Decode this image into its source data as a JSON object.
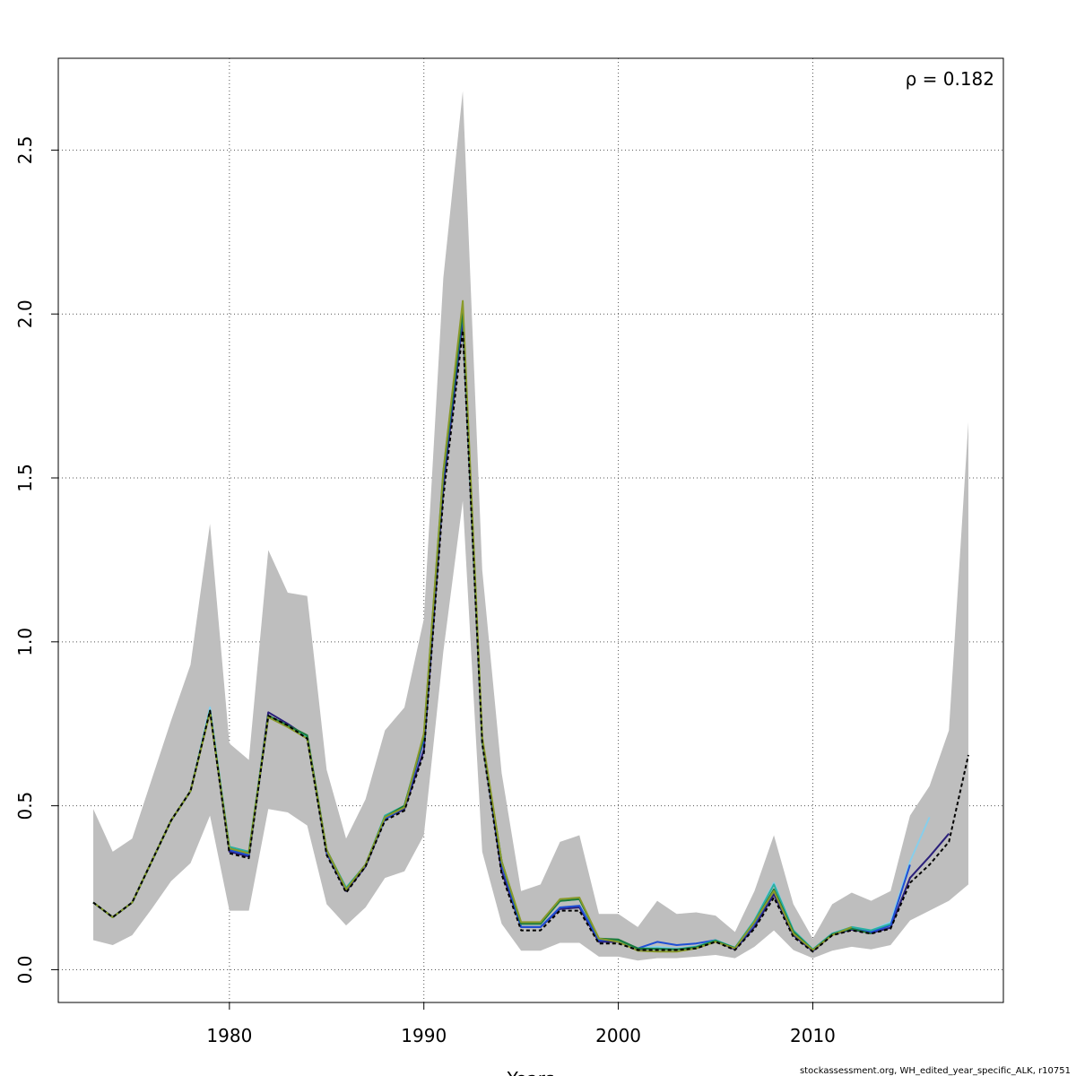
{
  "chart_data": {
    "type": "line",
    "title": "",
    "xlabel": "Years",
    "ylabel": "",
    "xlim": [
      1971.2,
      2019.8
    ],
    "ylim": [
      -0.1,
      2.78
    ],
    "x_ticks": [
      1980,
      1990,
      2000,
      2010
    ],
    "y_ticks": [
      0.0,
      0.5,
      1.0,
      1.5,
      2.0,
      2.5
    ],
    "y_tick_labels": [
      "0.0",
      "0.5",
      "1.0",
      "1.5",
      "2.0",
      "2.5"
    ],
    "grid": true,
    "annotation": "ρ = 0.182",
    "footer": "stockassessment.org, WH_edited_year_specific_ALK, r10751",
    "band_color": "#bebebe",
    "confidence_band": {
      "x": [
        1973,
        1974,
        1975,
        1976,
        1977,
        1978,
        1979,
        1980,
        1981,
        1982,
        1983,
        1984,
        1985,
        1986,
        1987,
        1988,
        1989,
        1990,
        1991,
        1992,
        1993,
        1994,
        1995,
        1996,
        1997,
        1998,
        1999,
        2000,
        2001,
        2002,
        2003,
        2004,
        2005,
        2006,
        2007,
        2008,
        2009,
        2010,
        2011,
        2012,
        2013,
        2014,
        2015,
        2016,
        2017,
        2018
      ],
      "lower": [
        0.09,
        0.075,
        0.105,
        0.185,
        0.27,
        0.325,
        0.47,
        0.18,
        0.18,
        0.49,
        0.48,
        0.44,
        0.2,
        0.135,
        0.19,
        0.28,
        0.3,
        0.41,
        0.97,
        1.43,
        0.36,
        0.14,
        0.058,
        0.058,
        0.082,
        0.082,
        0.04,
        0.04,
        0.028,
        0.035,
        0.035,
        0.04,
        0.045,
        0.035,
        0.07,
        0.12,
        0.06,
        0.035,
        0.058,
        0.07,
        0.062,
        0.075,
        0.15,
        0.18,
        0.21,
        0.26
      ],
      "upper": [
        0.49,
        0.36,
        0.4,
        0.58,
        0.76,
        0.93,
        1.36,
        0.69,
        0.64,
        1.28,
        1.15,
        1.14,
        0.61,
        0.4,
        0.52,
        0.73,
        0.8,
        1.07,
        2.11,
        2.68,
        1.22,
        0.6,
        0.24,
        0.26,
        0.39,
        0.41,
        0.17,
        0.17,
        0.13,
        0.21,
        0.17,
        0.175,
        0.165,
        0.115,
        0.24,
        0.41,
        0.2,
        0.095,
        0.2,
        0.235,
        0.21,
        0.24,
        0.47,
        0.56,
        0.73,
        1.67
      ]
    },
    "series": [
      {
        "color": "#000000",
        "dashed": true,
        "x": [
          1973,
          1974,
          1975,
          1976,
          1977,
          1978,
          1979,
          1980,
          1981,
          1982,
          1983,
          1984,
          1985,
          1986,
          1987,
          1988,
          1989,
          1990,
          1991,
          1992,
          1993,
          1994,
          1995,
          1996,
          1997,
          1998,
          1999,
          2000,
          2001,
          2002,
          2003,
          2004,
          2005,
          2006,
          2007,
          2008,
          2009,
          2010,
          2011,
          2012,
          2013,
          2014,
          2015,
          2016,
          2017,
          2018
        ],
        "values": [
          0.205,
          0.16,
          0.205,
          0.33,
          0.455,
          0.545,
          0.79,
          0.355,
          0.34,
          0.775,
          0.745,
          0.705,
          0.35,
          0.235,
          0.315,
          0.455,
          0.485,
          0.66,
          1.44,
          1.95,
          0.69,
          0.29,
          0.12,
          0.12,
          0.18,
          0.18,
          0.08,
          0.08,
          0.06,
          0.06,
          0.06,
          0.065,
          0.085,
          0.06,
          0.125,
          0.22,
          0.1,
          0.055,
          0.105,
          0.12,
          0.11,
          0.125,
          0.265,
          0.32,
          0.39,
          0.655
        ]
      },
      {
        "color": "#2a1f7a",
        "dashed": false,
        "x": [
          1973,
          1974,
          1975,
          1976,
          1977,
          1978,
          1979,
          1980,
          1981,
          1982,
          1983,
          1984,
          1985,
          1986,
          1987,
          1988,
          1989,
          1990,
          1991,
          1992,
          1993,
          1994,
          1995,
          1996,
          1997,
          1998,
          1999,
          2000,
          2001,
          2002,
          2003,
          2004,
          2005,
          2006,
          2007,
          2008,
          2009,
          2010,
          2011,
          2012,
          2013,
          2014,
          2015,
          2016,
          2017
        ],
        "values": [
          0.205,
          0.16,
          0.205,
          0.33,
          0.455,
          0.545,
          0.79,
          0.36,
          0.345,
          0.785,
          0.75,
          0.71,
          0.355,
          0.24,
          0.315,
          0.46,
          0.49,
          0.67,
          1.47,
          1.98,
          0.7,
          0.3,
          0.13,
          0.13,
          0.185,
          0.19,
          0.085,
          0.085,
          0.062,
          0.065,
          0.062,
          0.068,
          0.087,
          0.062,
          0.13,
          0.23,
          0.105,
          0.057,
          0.107,
          0.122,
          0.112,
          0.128,
          0.28,
          0.345,
          0.415
        ]
      },
      {
        "color": "#87ceeb",
        "dashed": false,
        "x": [
          1973,
          1974,
          1975,
          1976,
          1977,
          1978,
          1979,
          1980,
          1981,
          1982,
          1983,
          1984,
          1985,
          1986,
          1987,
          1988,
          1989,
          1990,
          1991,
          1992,
          1993,
          1994,
          1995,
          1996,
          1997,
          1998,
          1999,
          2000,
          2001,
          2002,
          2003,
          2004,
          2005,
          2006,
          2007,
          2008,
          2009,
          2010,
          2011,
          2012,
          2013,
          2014,
          2015,
          2016
        ],
        "values": [
          0.205,
          0.16,
          0.205,
          0.33,
          0.455,
          0.545,
          0.8,
          0.375,
          0.355,
          0.775,
          0.745,
          0.705,
          0.36,
          0.245,
          0.32,
          0.47,
          0.5,
          0.715,
          1.52,
          2.02,
          0.7,
          0.33,
          0.14,
          0.14,
          0.21,
          0.215,
          0.095,
          0.09,
          0.065,
          0.07,
          0.065,
          0.07,
          0.09,
          0.067,
          0.15,
          0.265,
          0.12,
          0.062,
          0.11,
          0.13,
          0.12,
          0.145,
          0.33,
          0.465
        ]
      },
      {
        "color": "#1f4fd6",
        "dashed": false,
        "x": [
          1973,
          1974,
          1975,
          1976,
          1977,
          1978,
          1979,
          1980,
          1981,
          1982,
          1983,
          1984,
          1985,
          1986,
          1987,
          1988,
          1989,
          1990,
          1991,
          1992,
          1993,
          1994,
          1995,
          1996,
          1997,
          1998,
          1999,
          2000,
          2001,
          2002,
          2003,
          2004,
          2005,
          2006,
          2007,
          2008,
          2009,
          2010,
          2011,
          2012,
          2013,
          2014,
          2015
        ],
        "values": [
          0.205,
          0.16,
          0.205,
          0.33,
          0.455,
          0.545,
          0.79,
          0.365,
          0.35,
          0.77,
          0.745,
          0.71,
          0.36,
          0.245,
          0.32,
          0.46,
          0.495,
          0.7,
          1.5,
          2.0,
          0.7,
          0.32,
          0.13,
          0.13,
          0.19,
          0.195,
          0.09,
          0.09,
          0.065,
          0.085,
          0.075,
          0.08,
          0.09,
          0.065,
          0.14,
          0.24,
          0.11,
          0.06,
          0.11,
          0.125,
          0.115,
          0.135,
          0.32
        ]
      },
      {
        "color": "#2bb0a0",
        "dashed": false,
        "x": [
          1973,
          1974,
          1975,
          1976,
          1977,
          1978,
          1979,
          1980,
          1981,
          1982,
          1983,
          1984,
          1985,
          1986,
          1987,
          1988,
          1989,
          1990,
          1991,
          1992,
          1993,
          1994,
          1995,
          1996,
          1997,
          1998,
          1999,
          2000,
          2001,
          2002,
          2003,
          2004,
          2005,
          2006,
          2007,
          2008,
          2009,
          2010,
          2011,
          2012,
          2013,
          2014
        ],
        "values": [
          0.205,
          0.16,
          0.205,
          0.33,
          0.455,
          0.545,
          0.79,
          0.375,
          0.36,
          0.775,
          0.745,
          0.71,
          0.365,
          0.25,
          0.32,
          0.47,
          0.5,
          0.715,
          1.52,
          2.02,
          0.7,
          0.33,
          0.14,
          0.14,
          0.21,
          0.215,
          0.095,
          0.09,
          0.065,
          0.065,
          0.062,
          0.07,
          0.09,
          0.067,
          0.15,
          0.26,
          0.12,
          0.062,
          0.11,
          0.13,
          0.12,
          0.14
        ]
      },
      {
        "color": "#1a7a3a",
        "dashed": false,
        "x": [
          1973,
          1974,
          1975,
          1976,
          1977,
          1978,
          1979,
          1980,
          1981,
          1982,
          1983,
          1984,
          1985,
          1986,
          1987,
          1988,
          1989,
          1990,
          1991,
          1992,
          1993,
          1994,
          1995,
          1996,
          1997,
          1998,
          1999,
          2000,
          2001,
          2002,
          2003,
          2004,
          2005,
          2006,
          2007,
          2008,
          2009,
          2010,
          2011,
          2012,
          2013
        ],
        "values": [
          0.205,
          0.16,
          0.205,
          0.33,
          0.455,
          0.545,
          0.79,
          0.37,
          0.355,
          0.775,
          0.745,
          0.715,
          0.365,
          0.245,
          0.32,
          0.465,
          0.5,
          0.71,
          1.51,
          2.01,
          0.7,
          0.33,
          0.14,
          0.14,
          0.21,
          0.215,
          0.095,
          0.092,
          0.065,
          0.063,
          0.062,
          0.068,
          0.088,
          0.066,
          0.145,
          0.245,
          0.115,
          0.06,
          0.108,
          0.125,
          0.11
        ]
      },
      {
        "color": "#8a9a2a",
        "dashed": false,
        "x": [
          1973,
          1974,
          1975,
          1976,
          1977,
          1978,
          1979,
          1980,
          1981,
          1982,
          1983,
          1984,
          1985,
          1986,
          1987,
          1988,
          1989,
          1990,
          1991,
          1992,
          1993,
          1994,
          1995,
          1996,
          1997,
          1998,
          1999,
          2000,
          2001,
          2002,
          2003,
          2004,
          2005,
          2006,
          2007,
          2008,
          2009,
          2010,
          2011,
          2012
        ],
        "values": [
          0.205,
          0.16,
          0.205,
          0.33,
          0.455,
          0.545,
          0.785,
          0.37,
          0.355,
          0.77,
          0.74,
          0.705,
          0.365,
          0.245,
          0.32,
          0.465,
          0.495,
          0.72,
          1.52,
          2.04,
          0.71,
          0.33,
          0.145,
          0.145,
          0.215,
          0.22,
          0.095,
          0.085,
          0.058,
          0.055,
          0.055,
          0.065,
          0.085,
          0.065,
          0.145,
          0.24,
          0.11,
          0.06,
          0.105,
          0.13
        ]
      }
    ]
  }
}
